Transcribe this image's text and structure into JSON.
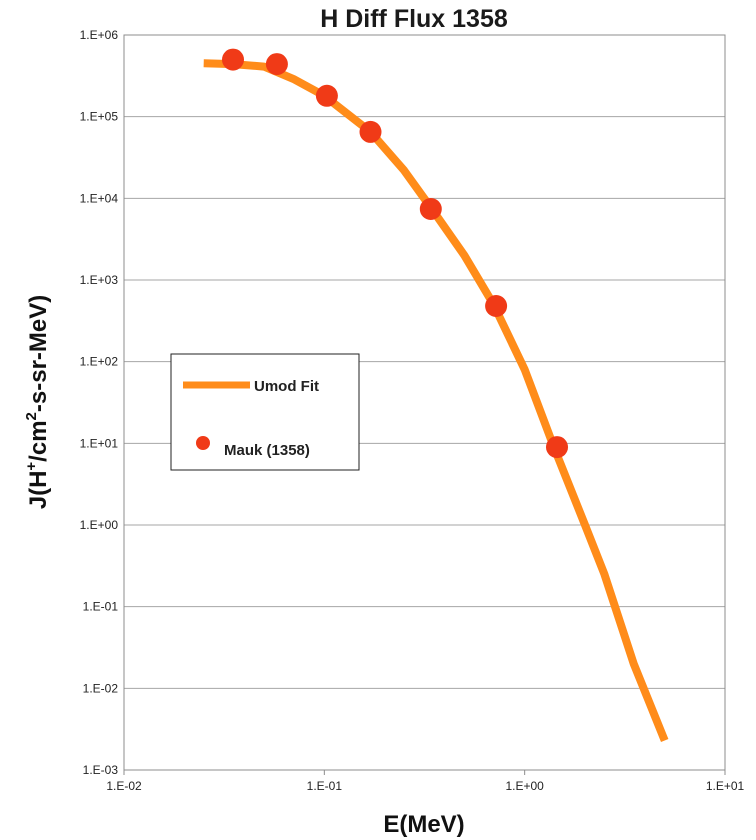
{
  "chart_data": {
    "type": "scatter",
    "title": "H Diff Flux 1358",
    "xlabel": "E(MeV)",
    "ylabel_parts": [
      "J(H",
      "+",
      "/cm",
      "2",
      "-s-sr-MeV)"
    ],
    "x_scale": "log",
    "y_scale": "log",
    "xlim": [
      0.01,
      10
    ],
    "ylim": [
      0.001,
      1000000
    ],
    "x_ticks": [
      0.01,
      0.1,
      1,
      10
    ],
    "x_tick_labels": [
      "1.E-02",
      "1.E-01",
      "1.E+00",
      "1.E+01"
    ],
    "y_ticks": [
      0.001,
      0.01,
      0.1,
      1,
      10,
      100,
      1000,
      10000,
      100000,
      1000000
    ],
    "y_tick_labels": [
      "1.E-03",
      "1.E-02",
      "1.E-01",
      "1.E+00",
      "1.E+01",
      "1.E+02",
      "1.E+03",
      "1.E+04",
      "1.E+05",
      "1.E+06"
    ],
    "grid": "horizontal",
    "legend_position": "left-middle",
    "series": [
      {
        "name": "Umod Fit",
        "kind": "line",
        "color": "#ff8c1a",
        "x": [
          0.025,
          0.035,
          0.05,
          0.07,
          0.1,
          0.17,
          0.25,
          0.35,
          0.5,
          0.7,
          1.0,
          1.4,
          2.0,
          2.5,
          3.5,
          5.0
        ],
        "y": [
          450000,
          440000,
          410000,
          290000,
          180000,
          65000,
          22000,
          7000,
          2000,
          500,
          80,
          9,
          1.0,
          0.25,
          0.02,
          0.0023
        ]
      },
      {
        "name": "Mauk (1358)",
        "kind": "scatter",
        "color": "#f03a17",
        "x": [
          0.035,
          0.058,
          0.103,
          0.17,
          0.34,
          0.72,
          1.45
        ],
        "y": [
          500000,
          440000,
          180000,
          65000,
          7400,
          480,
          9
        ]
      }
    ]
  }
}
